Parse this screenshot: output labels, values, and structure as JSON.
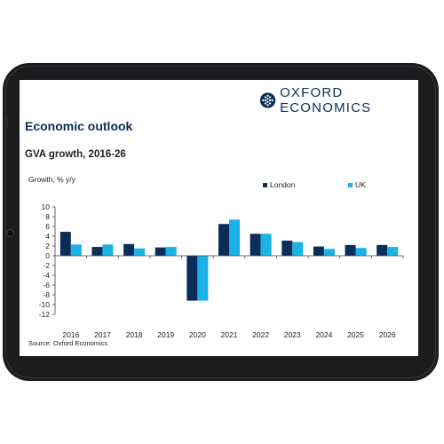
{
  "logo": {
    "text": "OXFORD ECONOMICS",
    "icon": "globe-icon"
  },
  "title": "Economic outlook",
  "subtitle": "GVA growth, 2016-26",
  "source": "Source: Oxford Economics",
  "colors": {
    "london": "#0b2d5a",
    "uk": "#19b3e6",
    "navy": "#0b2d5a"
  },
  "chart_data": {
    "type": "bar",
    "ylabel": "Growth, % y/y",
    "xlabel": "",
    "ylim": [
      -12,
      10
    ],
    "yticks": [
      10,
      8,
      6,
      4,
      2,
      0,
      -2,
      -4,
      -6,
      -8,
      -10,
      -12
    ],
    "categories": [
      "2016",
      "2017",
      "2018",
      "2019",
      "2020",
      "2021",
      "2022",
      "2023",
      "2024",
      "2025",
      "2026"
    ],
    "series": [
      {
        "name": "London",
        "values": [
          4.9,
          1.8,
          2.4,
          1.7,
          -9.2,
          6.5,
          4.5,
          3.1,
          1.9,
          2.2,
          2.2
        ]
      },
      {
        "name": "UK",
        "values": [
          2.3,
          2.3,
          1.5,
          1.8,
          -9.2,
          7.4,
          4.5,
          2.8,
          1.4,
          1.6,
          1.8
        ]
      }
    ],
    "legend_position": "top",
    "grid": false
  }
}
